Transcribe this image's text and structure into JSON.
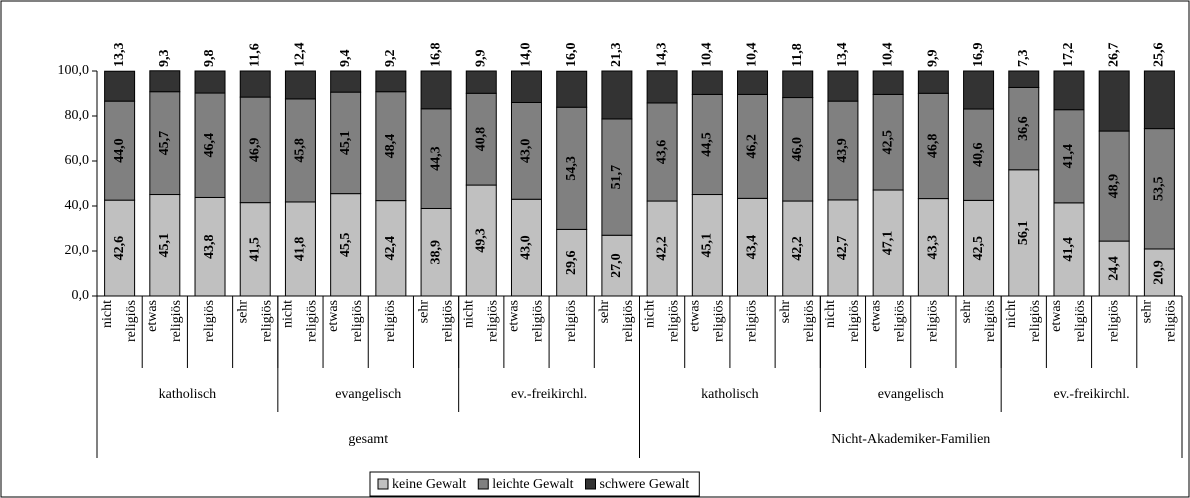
{
  "chart_data": {
    "type": "stacked_bar",
    "categories": [
      [
        "nicht",
        "religiös"
      ],
      [
        "etwas",
        "religiös"
      ],
      [
        "religiös"
      ],
      [
        "sehr",
        "religiös"
      ],
      [
        "nicht",
        "religiös"
      ],
      [
        "etwas",
        "religiös"
      ],
      [
        "religiös"
      ],
      [
        "sehr",
        "religiös"
      ],
      [
        "nicht",
        "religiös"
      ],
      [
        "etwas",
        "religiös"
      ],
      [
        "religiös"
      ],
      [
        "sehr",
        "religiös"
      ],
      [
        "nicht",
        "religiös"
      ],
      [
        "etwas",
        "religiös"
      ],
      [
        "religiös"
      ],
      [
        "sehr",
        "religiös"
      ],
      [
        "nicht",
        "religiös"
      ],
      [
        "etwas",
        "religiös"
      ],
      [
        "religiös"
      ],
      [
        "sehr",
        "religiös"
      ],
      [
        "nicht",
        "religiös"
      ],
      [
        "etwas",
        "religiös"
      ],
      [
        "religiös"
      ],
      [
        "sehr",
        "religiös"
      ]
    ],
    "category_groups": [
      "katholisch",
      "evangelisch",
      "ev.-freikirchl.",
      "katholisch",
      "evangelisch",
      "ev.-freikirchl."
    ],
    "top_groups": [
      "gesamt",
      "Nicht-Akademiker-Familien"
    ],
    "series": [
      {
        "name": "keine Gewalt",
        "color": "#c0c0c0",
        "values": [
          42.6,
          45.1,
          43.8,
          41.5,
          41.8,
          45.5,
          42.4,
          38.9,
          49.3,
          43.0,
          29.6,
          27.0,
          42.2,
          45.1,
          43.4,
          42.2,
          42.7,
          47.1,
          43.3,
          42.5,
          56.1,
          41.4,
          24.4,
          20.9
        ],
        "value_labels": [
          "42,6",
          "45,1",
          "43,8",
          "41,5",
          "41,8",
          "45,5",
          "42,4",
          "38,9",
          "49,3",
          "43,0",
          "29,6",
          "27,0",
          "42,2",
          "45,1",
          "43,4",
          "42,2",
          "42,7",
          "47,1",
          "43,3",
          "42,5",
          "56,1",
          "41,4",
          "24,4",
          "20,9"
        ]
      },
      {
        "name": "leichte Gewalt",
        "color": "#808080",
        "values": [
          44.0,
          45.7,
          46.4,
          46.9,
          45.8,
          45.1,
          48.4,
          44.3,
          40.8,
          43.0,
          54.3,
          51.7,
          43.6,
          44.5,
          46.2,
          46.0,
          43.9,
          42.5,
          46.8,
          40.6,
          36.6,
          41.4,
          48.9,
          53.5
        ],
        "value_labels": [
          "44,0",
          "45,7",
          "46,4",
          "46,9",
          "45,8",
          "45,1",
          "48,4",
          "44,3",
          "40,8",
          "43,0",
          "54,3",
          "51,7",
          "43,6",
          "44,5",
          "46,2",
          "46,0",
          "43,9",
          "42,5",
          "46,8",
          "40,6",
          "36,6",
          "41,4",
          "48,9",
          "53,5"
        ]
      },
      {
        "name": "schwere Gewalt",
        "color": "#333333",
        "values": [
          13.3,
          9.3,
          9.8,
          11.6,
          12.4,
          9.4,
          9.2,
          16.8,
          9.9,
          14.0,
          16.0,
          21.3,
          14.3,
          10.4,
          10.4,
          11.8,
          13.4,
          10.4,
          9.9,
          16.9,
          7.3,
          17.2,
          26.7,
          25.6
        ],
        "value_labels": [
          "13,3",
          "9,3",
          "9,8",
          "11,6",
          "12,4",
          "9,4",
          "9,2",
          "16,8",
          "9,9",
          "14,0",
          "16,0",
          "21,3",
          "14,3",
          "10,4",
          "10,4",
          "11,8",
          "13,4",
          "10,4",
          "9,9",
          "16,9",
          "7,3",
          "17,2",
          "26,7",
          "25,6"
        ]
      }
    ],
    "ylim": [
      0,
      100
    ],
    "yticks": [
      {
        "value": 0,
        "label": "0,0"
      },
      {
        "value": 20,
        "label": "20,0"
      },
      {
        "value": 40,
        "label": "40,0"
      },
      {
        "value": 60,
        "label": "60,0"
      },
      {
        "value": 80,
        "label": "80,0"
      },
      {
        "value": 100,
        "label": "100,0"
      }
    ],
    "legend": "bottom"
  }
}
